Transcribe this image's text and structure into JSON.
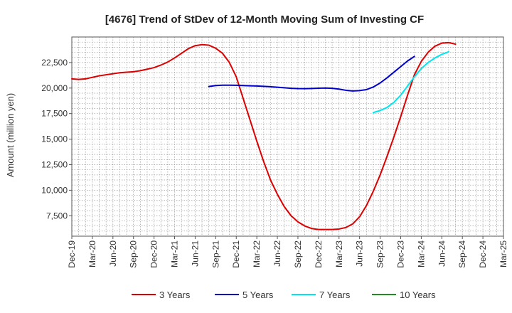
{
  "chart_data": {
    "type": "line",
    "title": "[4676]  Trend of StDev of 12-Month Moving Sum of Investing CF",
    "xlabel": "",
    "ylabel": "Amount (million yen)",
    "ylim": [
      5500,
      25000
    ],
    "yticks": [
      7500,
      10000,
      12500,
      15000,
      17500,
      20000,
      22500
    ],
    "ytick_labels": [
      "7,500",
      "10,000",
      "12,500",
      "15,000",
      "17,500",
      "20,000",
      "22,500"
    ],
    "x_start": "2019-12",
    "x_end": "2025-03",
    "xtick_labels": [
      "Dec-19",
      "Mar-20",
      "Jun-20",
      "Sep-20",
      "Dec-20",
      "Mar-21",
      "Jun-21",
      "Sep-21",
      "Dec-21",
      "Mar-22",
      "Jun-22",
      "Sep-22",
      "Dec-22",
      "Mar-23",
      "Jun-23",
      "Sep-23",
      "Dec-23",
      "Mar-24",
      "Jun-24",
      "Sep-24",
      "Dec-24",
      "Mar-25"
    ],
    "grid": true,
    "legend_position": "bottom",
    "series": [
      {
        "name": "3 Years",
        "color": "#dd0000",
        "start": "2019-12",
        "values": [
          20900,
          20850,
          20900,
          21050,
          21200,
          21300,
          21400,
          21500,
          21550,
          21600,
          21700,
          21850,
          22000,
          22250,
          22550,
          22950,
          23400,
          23850,
          24150,
          24250,
          24200,
          23900,
          23400,
          22500,
          21100,
          19000,
          16900,
          14800,
          12800,
          11000,
          9600,
          8400,
          7500,
          6900,
          6500,
          6250,
          6150,
          6150,
          6150,
          6200,
          6350,
          6700,
          7400,
          8500,
          9900,
          11500,
          13300,
          15200,
          17200,
          19300,
          21300,
          22600,
          23500,
          24100,
          24400,
          24450,
          24300
        ]
      },
      {
        "name": "5 Years",
        "color": "#0000cc",
        "start": "2021-08",
        "values": [
          20150,
          20250,
          20280,
          20280,
          20270,
          20250,
          20220,
          20200,
          20170,
          20130,
          20080,
          20030,
          19980,
          19950,
          19940,
          19960,
          19990,
          20000,
          19980,
          19900,
          19780,
          19720,
          19750,
          19850,
          20100,
          20500,
          21000,
          21550,
          22100,
          22650,
          23100
        ]
      },
      {
        "name": "7 Years",
        "color": "#00e5ee",
        "start": "2023-08",
        "values": [
          17600,
          17800,
          18100,
          18600,
          19300,
          20200,
          21100,
          21900,
          22500,
          22950,
          23300,
          23550
        ]
      },
      {
        "name": "10 Years",
        "color": "#228b22",
        "start": "2024-09",
        "values": []
      }
    ]
  }
}
